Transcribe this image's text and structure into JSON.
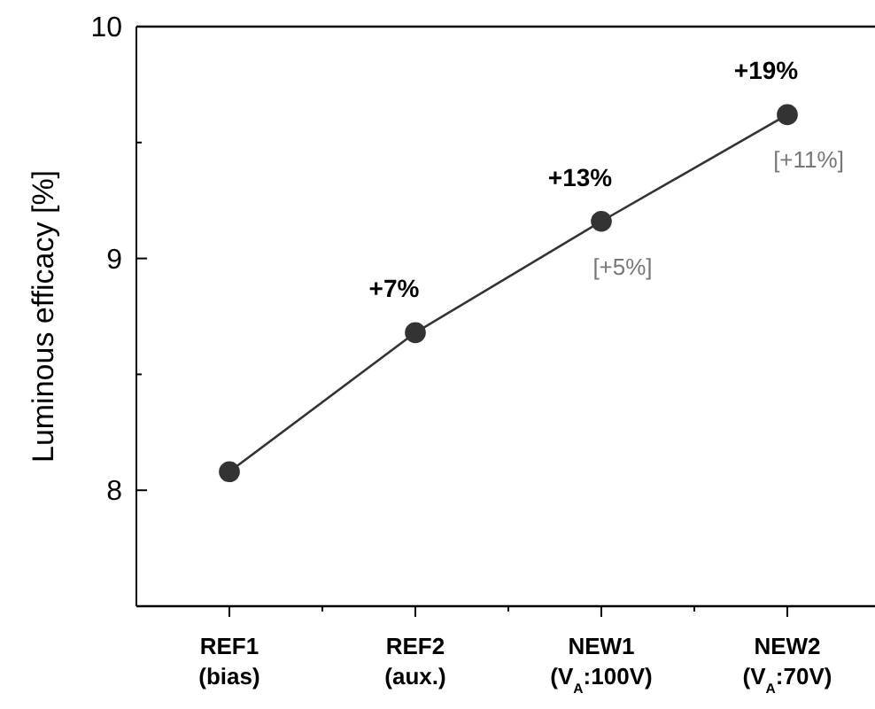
{
  "chart_data": {
    "type": "line",
    "ylabel": "Luminous efficacy [%]",
    "categories": [
      "REF1 (bias)",
      "REF2 (aux.)",
      "NEW1 (V$_{A}$:100V)",
      "NEW2 (V$_{A}$:70V)"
    ],
    "series": [
      {
        "color": "#333333",
        "values": [
          8.08,
          8.68,
          9.16,
          9.62
        ]
      }
    ],
    "ylim": [
      7.5,
      10
    ],
    "yticks": [
      {
        "value": 7.5,
        "label": null
      },
      8,
      {
        "value": 8.5,
        "label": null
      },
      9,
      {
        "value": 9.5,
        "label": null
      },
      10
    ],
    "annotations": [
      {
        "text": "+7%",
        "x": "REF2 (aux.)",
        "y": 8.68
      },
      {
        "text": "+13%",
        "x": "NEW1 (V$_{A}$:100V)",
        "y": 9.16
      },
      {
        "text": "+19%",
        "x": "NEW2 (V$_{A}$:70V)",
        "y": 9.62
      },
      {
        "text": "[+5%]",
        "x": "NEW1 (V$_{A}$:100V)",
        "y": 9.16
      },
      {
        "text": "[+11%]",
        "x": "NEW2 (V$_{A}$:70V)",
        "y": 9.62
      }
    ],
    "marker": "circle",
    "line_style": "solid",
    "grid": false
  }
}
